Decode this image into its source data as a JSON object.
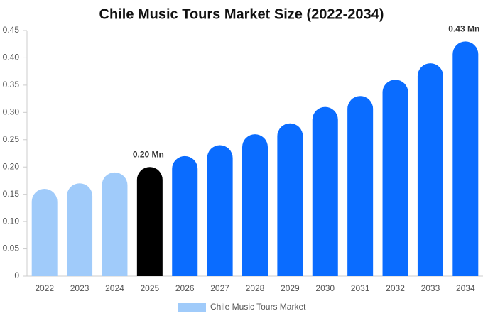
{
  "chart_data": {
    "type": "bar",
    "title": "Chile Music Tours Market Size (2022-2034)",
    "categories": [
      "2022",
      "2023",
      "2024",
      "2025",
      "2026",
      "2027",
      "2028",
      "2029",
      "2030",
      "2031",
      "2032",
      "2033",
      "2034"
    ],
    "series": [
      {
        "name": "Chile Music Tours Market",
        "color": "#a0cbfa",
        "values": [
          0.16,
          0.17,
          0.19,
          0.2,
          0.22,
          0.24,
          0.26,
          0.28,
          0.31,
          0.33,
          0.36,
          0.39,
          0.43
        ],
        "value_labels": [
          null,
          null,
          null,
          "0.20 Mn",
          null,
          null,
          null,
          null,
          null,
          null,
          null,
          null,
          "0.43 Mn"
        ],
        "colors": [
          "#a0cbfa",
          "#a0cbfa",
          "#a0cbfa",
          "#000000",
          "#0a6cff",
          "#0a6cff",
          "#0a6cff",
          "#0a6cff",
          "#0a6cff",
          "#0a6cff",
          "#0a6cff",
          "#0a6cff",
          "#0a6cff"
        ]
      }
    ],
    "ylim": [
      0,
      0.45
    ],
    "yticks": [
      0,
      0.05,
      {
        "value": 0.1,
        "label": "0.10"
      },
      0.15,
      {
        "value": 0.2,
        "label": "0.20"
      },
      0.25,
      {
        "value": 0.3,
        "label": "0.30"
      },
      0.35,
      {
        "value": 0.4,
        "label": "0.40"
      },
      0.45
    ],
    "grid": false
  }
}
